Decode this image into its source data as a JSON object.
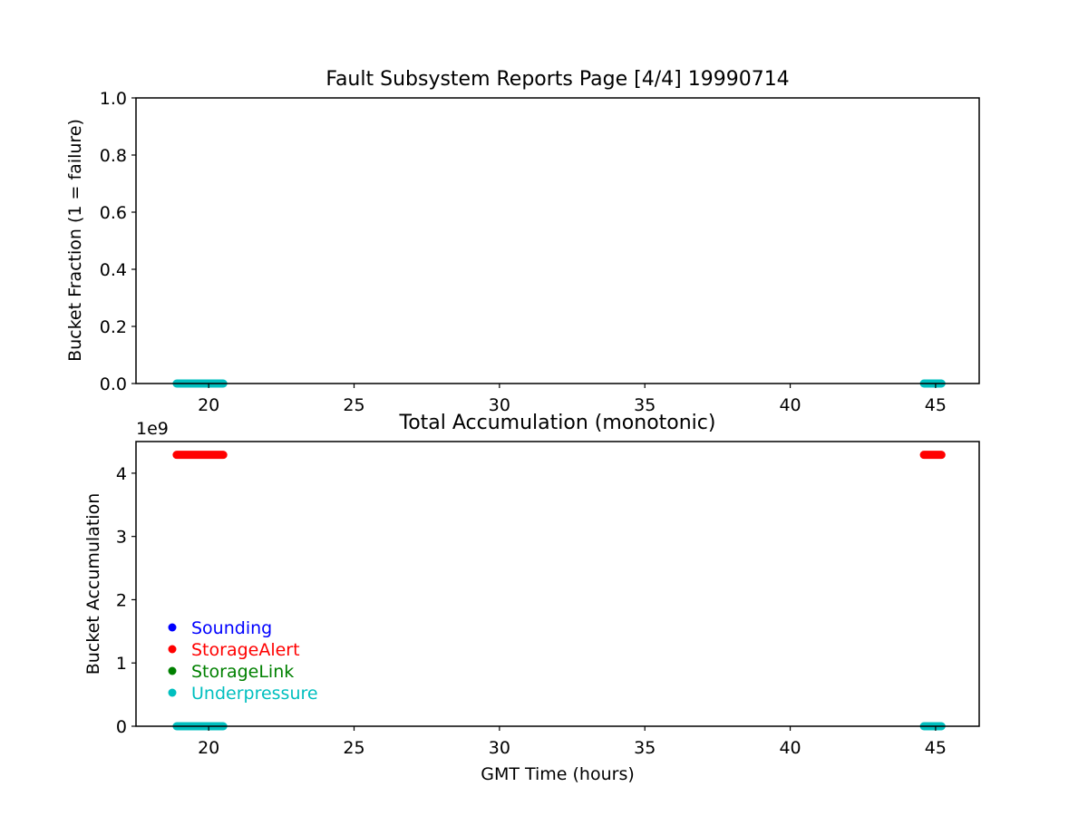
{
  "figure": {
    "title": "Fault Subsystem Reports Page [4/4] 19990714"
  },
  "chart_data": [
    {
      "type": "scatter",
      "title": "",
      "xlabel": "",
      "ylabel": "Bucket Fraction (1 = failure)",
      "xlim": [
        17.5,
        46.5
      ],
      "ylim": [
        0,
        1
      ],
      "xticks": [
        20,
        25,
        30,
        35,
        40,
        45
      ],
      "yticks": [
        0.0,
        0.2,
        0.4,
        0.6,
        0.8,
        1.0
      ],
      "ytick_labels": [
        "0.0",
        "0.2",
        "0.4",
        "0.6",
        "0.8",
        "1.0"
      ],
      "grid": false,
      "series": [
        {
          "name": "Sounding",
          "color": "#0000ff",
          "segments": []
        },
        {
          "name": "StorageAlert",
          "color": "#ff0000",
          "segments": []
        },
        {
          "name": "StorageLink",
          "color": "#008000",
          "segments": []
        },
        {
          "name": "Underpressure",
          "color": "#00bfbf",
          "segments": [
            {
              "x_start": 18.9,
              "x_end": 20.5,
              "y": 0
            },
            {
              "x_start": 44.6,
              "x_end": 45.2,
              "y": 0
            }
          ]
        }
      ]
    },
    {
      "type": "scatter",
      "title": "Total Accumulation (monotonic)",
      "xlabel": "GMT Time (hours)",
      "ylabel": "Bucket Accumulation",
      "xlim": [
        17.5,
        46.5
      ],
      "ylim": [
        0,
        4.5
      ],
      "yscale_label": "1e9",
      "xticks": [
        20,
        25,
        30,
        35,
        40,
        45
      ],
      "yticks": [
        0,
        1,
        2,
        3,
        4
      ],
      "ytick_labels": [
        "0",
        "1",
        "2",
        "3",
        "4"
      ],
      "grid": false,
      "legend_position": "lower-left",
      "series": [
        {
          "name": "Sounding",
          "color": "#0000ff",
          "segments": []
        },
        {
          "name": "StorageAlert",
          "color": "#ff0000",
          "segments": [
            {
              "x_start": 18.9,
              "x_end": 20.5,
              "y": 4.29
            },
            {
              "x_start": 44.6,
              "x_end": 45.2,
              "y": 4.29
            }
          ]
        },
        {
          "name": "StorageLink",
          "color": "#008000",
          "segments": []
        },
        {
          "name": "Underpressure",
          "color": "#00bfbf",
          "segments": [
            {
              "x_start": 18.9,
              "x_end": 20.5,
              "y": 0
            },
            {
              "x_start": 44.6,
              "x_end": 45.2,
              "y": 0
            }
          ]
        }
      ]
    }
  ]
}
